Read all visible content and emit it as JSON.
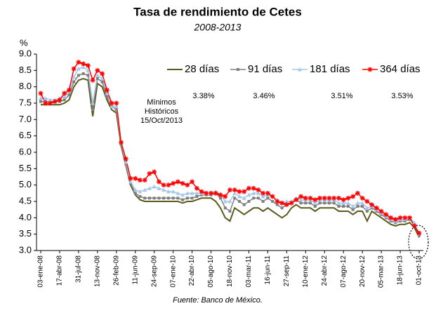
{
  "chart_data": {
    "type": "line",
    "title": "Tasa de rendimiento de Cetes",
    "subtitle": "2008-2013",
    "y_label": "%",
    "source": "Fuente: Banco de México.",
    "annotation": [
      "Mínimos",
      "Históricos",
      "15/Oct/2013"
    ],
    "min_labels": [
      "3.38%",
      "3.46%",
      "3.51%",
      "3.53%"
    ],
    "categories": [
      "03-ene-08",
      null,
      null,
      null,
      "17-abr-08",
      null,
      null,
      null,
      "31-jul-08",
      null,
      null,
      null,
      "13-nov-08",
      null,
      null,
      null,
      "26-feb-09",
      null,
      null,
      null,
      "11-jun-09",
      null,
      null,
      null,
      "24-sep-09",
      null,
      null,
      null,
      "07-ene-10",
      null,
      null,
      null,
      "22-abr-10",
      null,
      null,
      null,
      "05-ago-10",
      null,
      null,
      null,
      "18-nov-10",
      null,
      null,
      null,
      "03-mar-11",
      null,
      null,
      null,
      "16-jun-11",
      null,
      null,
      null,
      "27-sep-11",
      null,
      null,
      null,
      "10-ene-12",
      null,
      null,
      null,
      "24-abr-12",
      null,
      null,
      null,
      "07-ago-12",
      null,
      null,
      null,
      "20-nov-12",
      null,
      null,
      null,
      "05-mar-13",
      null,
      null,
      null,
      "18-jun-13",
      null,
      null,
      null,
      "01-oct-13"
    ],
    "series": [
      {
        "name": "28 días",
        "color": "#5a5a1e",
        "marker": "none",
        "values": [
          7.45,
          7.45,
          7.45,
          7.45,
          7.45,
          7.5,
          7.6,
          8.0,
          8.2,
          8.25,
          8.2,
          7.1,
          8.1,
          8.0,
          7.6,
          7.3,
          7.2,
          6.2,
          5.6,
          5.0,
          4.7,
          4.55,
          4.5,
          4.5,
          4.5,
          4.5,
          4.5,
          4.5,
          4.5,
          4.5,
          4.45,
          4.5,
          4.5,
          4.55,
          4.6,
          4.6,
          4.6,
          4.5,
          4.3,
          4.0,
          3.9,
          4.3,
          4.2,
          4.1,
          4.2,
          4.3,
          4.3,
          4.2,
          4.3,
          4.2,
          4.1,
          4.0,
          4.1,
          4.3,
          4.4,
          4.3,
          4.3,
          4.3,
          4.2,
          4.3,
          4.3,
          4.3,
          4.3,
          4.2,
          4.2,
          4.2,
          4.1,
          4.2,
          4.2,
          3.9,
          4.2,
          4.1,
          4.0,
          3.9,
          3.8,
          3.75,
          3.8,
          3.8,
          3.85,
          3.7,
          3.4
        ]
      },
      {
        "name": "91 días",
        "color": "#808080",
        "marker": "square",
        "values": [
          7.55,
          7.55,
          7.55,
          7.55,
          7.55,
          7.6,
          7.75,
          8.15,
          8.35,
          8.4,
          8.35,
          7.3,
          8.25,
          8.15,
          7.7,
          7.4,
          7.3,
          6.25,
          5.65,
          5.05,
          4.75,
          4.65,
          4.6,
          4.6,
          4.6,
          4.6,
          4.6,
          4.6,
          4.6,
          4.6,
          4.55,
          4.6,
          4.6,
          4.65,
          4.7,
          4.7,
          4.7,
          4.75,
          4.6,
          4.3,
          4.2,
          4.6,
          4.5,
          4.4,
          4.5,
          4.6,
          4.6,
          4.5,
          4.6,
          4.5,
          4.4,
          4.3,
          4.4,
          4.45,
          4.55,
          4.45,
          4.45,
          4.45,
          4.35,
          4.45,
          4.45,
          4.45,
          4.45,
          4.35,
          4.35,
          4.35,
          4.25,
          4.35,
          4.35,
          4.2,
          4.3,
          4.2,
          4.1,
          4.0,
          3.9,
          3.85,
          3.9,
          3.9,
          3.95,
          3.8,
          3.46
        ]
      },
      {
        "name": "181 días",
        "color": "#a6c8ea",
        "marker": "triangle",
        "values": [
          7.65,
          7.65,
          7.6,
          7.6,
          7.65,
          7.7,
          7.85,
          8.3,
          8.55,
          8.6,
          8.5,
          7.5,
          8.35,
          8.25,
          7.8,
          7.4,
          7.4,
          6.3,
          5.7,
          5.1,
          4.85,
          4.8,
          4.85,
          4.9,
          4.95,
          4.9,
          4.85,
          4.8,
          4.8,
          4.75,
          4.7,
          4.75,
          4.75,
          4.75,
          4.75,
          4.75,
          4.75,
          4.8,
          4.7,
          4.5,
          4.5,
          4.75,
          4.65,
          4.6,
          4.7,
          4.75,
          4.75,
          4.65,
          4.7,
          4.65,
          4.55,
          4.45,
          4.5,
          4.5,
          4.6,
          4.55,
          4.55,
          4.55,
          4.45,
          4.55,
          4.55,
          4.55,
          4.55,
          4.45,
          4.45,
          4.45,
          4.35,
          4.45,
          4.45,
          4.3,
          4.35,
          4.25,
          4.15,
          4.05,
          3.95,
          3.9,
          3.95,
          3.95,
          4.0,
          3.85,
          3.51
        ]
      },
      {
        "name": "364 días",
        "color": "#ff0000",
        "marker": "asterisk",
        "values": [
          7.8,
          7.5,
          7.5,
          7.55,
          7.6,
          7.8,
          7.9,
          8.55,
          8.75,
          8.7,
          8.65,
          8.2,
          8.5,
          8.4,
          7.9,
          7.5,
          7.5,
          6.3,
          5.8,
          5.2,
          5.2,
          5.15,
          5.15,
          5.35,
          5.4,
          5.1,
          5.0,
          5.0,
          5.05,
          5.1,
          5.05,
          5.0,
          5.1,
          4.9,
          4.8,
          4.75,
          4.75,
          4.75,
          4.7,
          4.65,
          4.85,
          4.85,
          4.8,
          4.8,
          4.9,
          4.9,
          4.85,
          4.75,
          4.75,
          4.65,
          4.5,
          4.45,
          4.4,
          4.45,
          4.55,
          4.65,
          4.6,
          4.6,
          4.55,
          4.6,
          4.6,
          4.6,
          4.6,
          4.6,
          4.55,
          4.6,
          4.65,
          4.75,
          4.6,
          4.5,
          4.4,
          4.3,
          4.2,
          4.1,
          4.0,
          3.95,
          4.0,
          4.0,
          4.0,
          3.75,
          3.53
        ]
      }
    ],
    "ylim": [
      3,
      9
    ],
    "yticks": [
      {
        "value": 3,
        "label": "3.0"
      },
      3.5,
      {
        "value": 4,
        "label": "4.0"
      },
      4.5,
      {
        "value": 5,
        "label": "5.0"
      },
      5.5,
      {
        "value": 6,
        "label": "6.0"
      },
      6.5,
      {
        "value": 7,
        "label": "7.0"
      },
      7.5,
      {
        "value": 8,
        "label": "8.0"
      },
      8.5,
      {
        "value": 9,
        "label": "9.0"
      }
    ],
    "grid": false,
    "legend": "top-right"
  }
}
